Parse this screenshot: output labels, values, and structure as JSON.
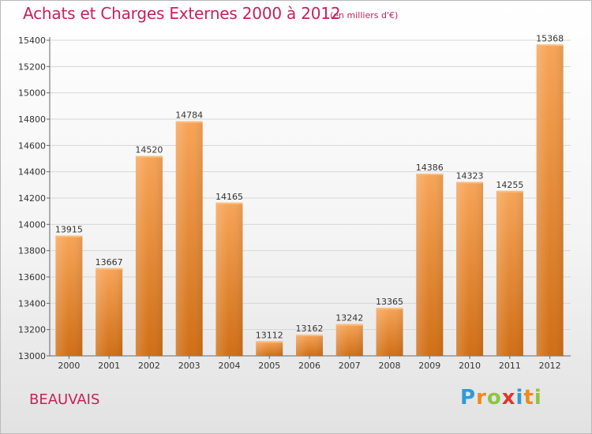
{
  "header": {
    "title": "Achats et Charges Externes 2000 à 2012",
    "subtitle": "(en milliers d'€)"
  },
  "footer": {
    "city": "BEAUVAIS",
    "logo_letters": [
      {
        "char": "P",
        "color": "#2e9bd6"
      },
      {
        "char": "r",
        "color": "#f08a1c"
      },
      {
        "char": "o",
        "color": "#8cc63f"
      },
      {
        "char": "x",
        "color": "#e3342f"
      },
      {
        "char": "i",
        "color": "#2e9bd6"
      },
      {
        "char": "t",
        "color": "#f08a1c"
      },
      {
        "char": "i",
        "color": "#8cc63f"
      }
    ]
  },
  "chart_data": {
    "type": "bar",
    "title": "Achats et Charges Externes 2000 à 2012",
    "subtitle": "(en milliers d'€)",
    "categories": [
      "2000",
      "2001",
      "2002",
      "2003",
      "2004",
      "2005",
      "2006",
      "2007",
      "2008",
      "2009",
      "2010",
      "2011",
      "2012"
    ],
    "values": [
      13915,
      13667,
      14520,
      14784,
      14165,
      13112,
      13162,
      13242,
      13365,
      14386,
      14323,
      14255,
      15368
    ],
    "ylim": [
      13000,
      15400
    ],
    "yticks": [
      13000,
      13200,
      13400,
      13600,
      13800,
      14000,
      14200,
      14400,
      14600,
      14800,
      15000,
      15200,
      15400
    ],
    "grid": true,
    "bar_color": "#e8892e",
    "legend": "none"
  }
}
